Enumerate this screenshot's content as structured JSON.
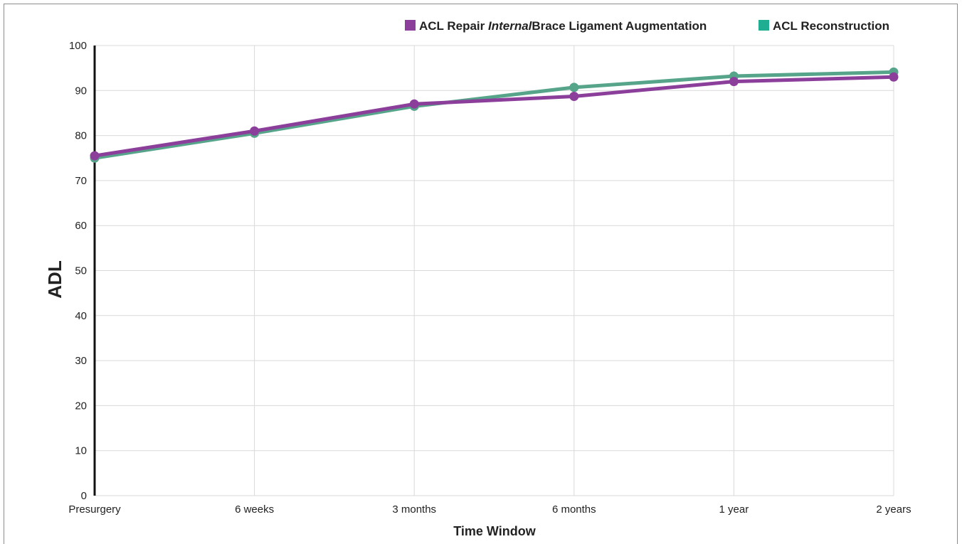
{
  "chart_data": {
    "type": "line",
    "categories": [
      "Presurgery",
      "6 weeks",
      "3 months",
      "6 months",
      "1 year",
      "2 years"
    ],
    "series": [
      {
        "name_parts": [
          "ACL Repair ",
          "Internal",
          "Brace Ligament Augmentation"
        ],
        "color": "#8b3f9b",
        "values": [
          75.5,
          81.0,
          87.0,
          88.7,
          92.0,
          93.0
        ]
      },
      {
        "name": "ACL Reconstruction",
        "legend_color": "#1fae91",
        "color": "#56a58a",
        "values": [
          75.0,
          80.5,
          86.5,
          90.7,
          93.2,
          94.1
        ]
      }
    ],
    "xlabel": "Time Window",
    "ylabel": "ADL",
    "ylim": [
      0,
      100
    ],
    "yticks": [
      "0",
      "10",
      "20",
      "30",
      "40",
      "50",
      "60",
      "70",
      "80",
      "90",
      "100"
    ],
    "grid": true,
    "legend_position": "top-right"
  }
}
